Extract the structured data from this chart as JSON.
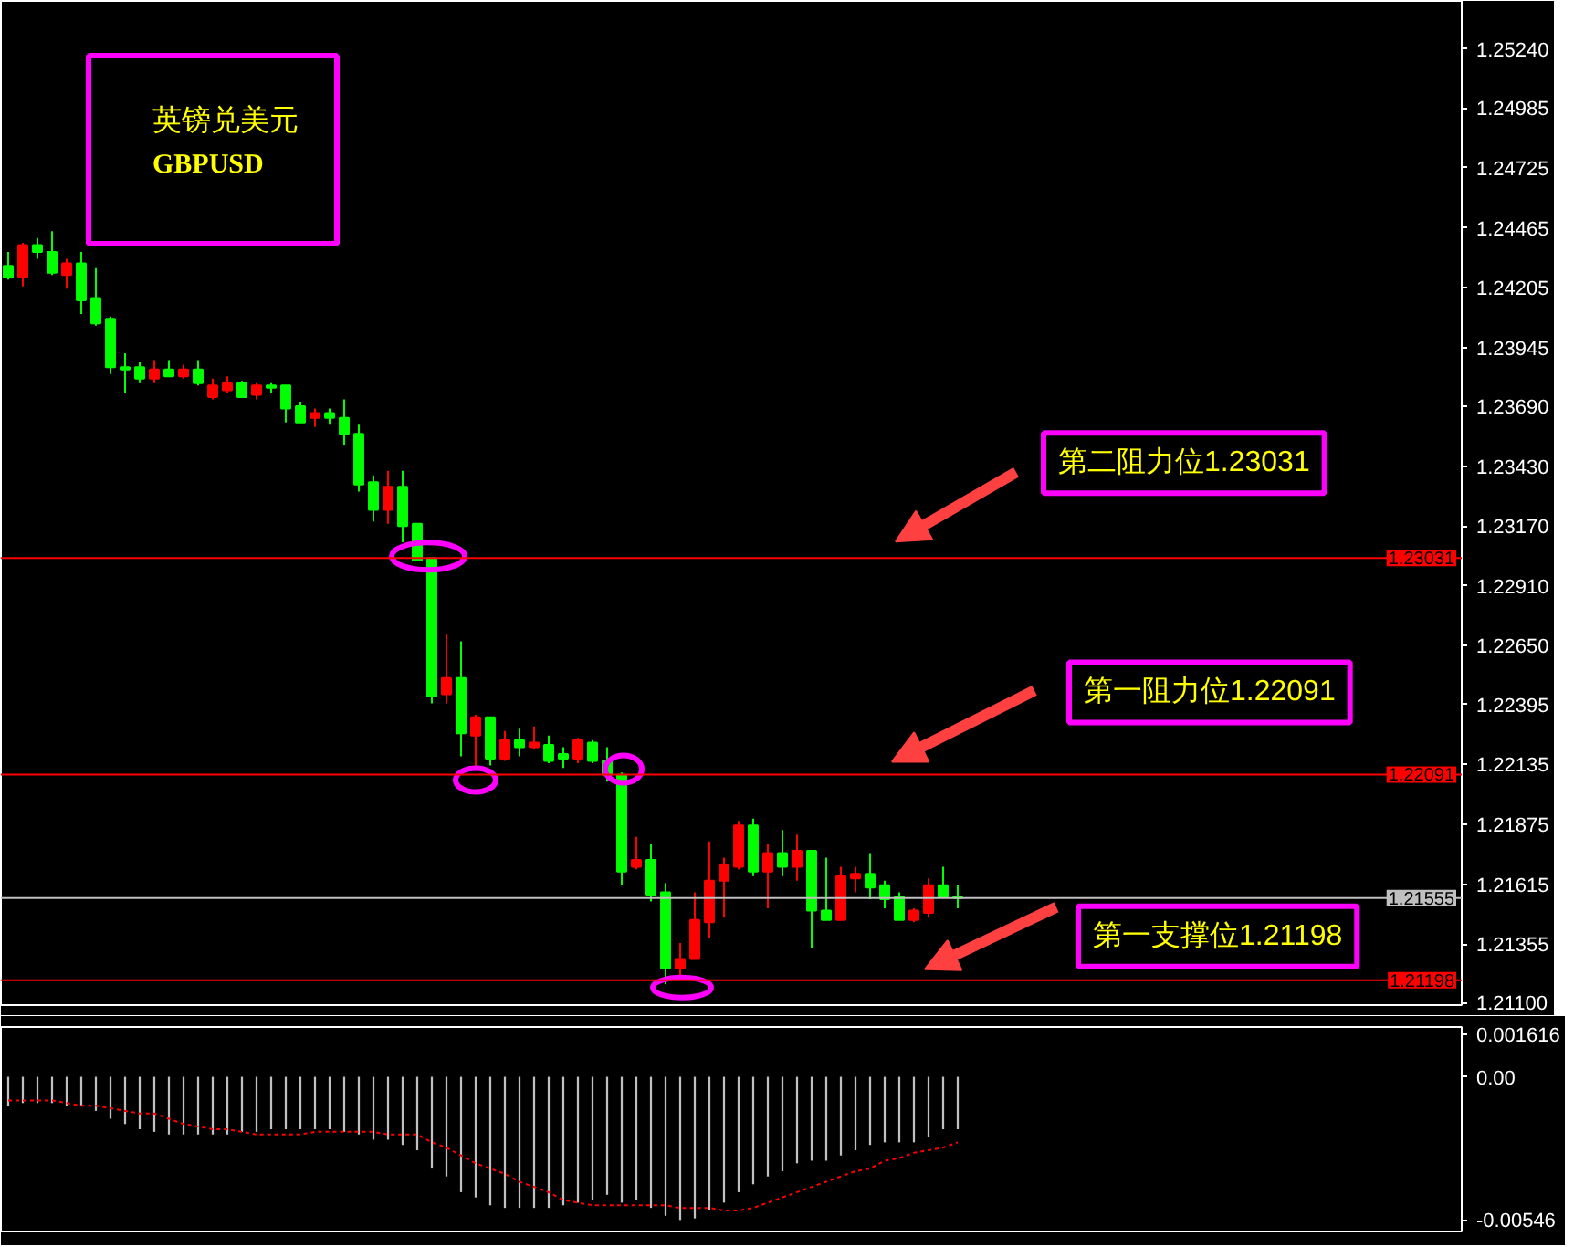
{
  "chart_data": [
    {
      "type": "candlestick",
      "title": "英镑兑美元",
      "subtitle": "GBPUSD",
      "categories": [
        null,
        null,
        null,
        null,
        null,
        null,
        null,
        null,
        null,
        null,
        null,
        null,
        null,
        null,
        null,
        null,
        null,
        null,
        null,
        null,
        null,
        null,
        null,
        null,
        null,
        null,
        null,
        null,
        null,
        null,
        null,
        null,
        null,
        null,
        null,
        null,
        null,
        null,
        null,
        null,
        null,
        null,
        null,
        null,
        null,
        null,
        null,
        null,
        null,
        null,
        null,
        null,
        null,
        null,
        null,
        null,
        null,
        null,
        null,
        null,
        null,
        null,
        null,
        null,
        null,
        null,
        null,
        null,
        null,
        null,
        null,
        null,
        null,
        null,
        null,
        null,
        null,
        null,
        null,
        null,
        null,
        null,
        null,
        null,
        null,
        null,
        null,
        null,
        null,
        null,
        null,
        null,
        null,
        null,
        null,
        null,
        null,
        null,
        null,
        null
      ],
      "ohlc": [
        [
          1.243,
          1.2436,
          1.2424,
          1.2425
        ],
        [
          1.2425,
          1.244,
          1.2421,
          1.2439
        ],
        [
          1.2439,
          1.2442,
          1.2433,
          1.2436
        ],
        [
          1.2436,
          1.2445,
          1.2426,
          1.2427
        ],
        [
          1.2426,
          1.2433,
          1.242,
          1.2431
        ],
        [
          1.2431,
          1.2436,
          1.2409,
          1.2415
        ],
        [
          1.2416,
          1.2429,
          1.2404,
          1.2405
        ],
        [
          1.2407,
          1.2408,
          1.2383,
          1.2386
        ],
        [
          1.2386,
          1.2392,
          1.2375,
          1.2385
        ],
        [
          1.2386,
          1.2388,
          1.2379,
          1.2381
        ],
        [
          1.2381,
          1.2389,
          1.2379,
          1.2385
        ],
        [
          1.2385,
          1.2389,
          1.2382,
          1.2382
        ],
        [
          1.2382,
          1.2387,
          1.2381,
          1.2385
        ],
        [
          1.2385,
          1.2389,
          1.2378,
          1.2379
        ],
        [
          1.2373,
          1.2381,
          1.2372,
          1.2378
        ],
        [
          1.2376,
          1.2382,
          1.2375,
          1.2379
        ],
        [
          1.2379,
          1.238,
          1.2373,
          1.2373
        ],
        [
          1.2374,
          1.2379,
          1.2372,
          1.2378
        ],
        [
          1.2378,
          1.2379,
          1.2375,
          1.2377
        ],
        [
          1.2378,
          1.2378,
          1.2362,
          1.2368
        ],
        [
          1.2369,
          1.2371,
          1.2362,
          1.2362
        ],
        [
          1.2364,
          1.2368,
          1.236,
          1.2366
        ],
        [
          1.2366,
          1.2368,
          1.2361,
          1.2364
        ],
        [
          1.2364,
          1.2372,
          1.2352,
          1.2357
        ],
        [
          1.2357,
          1.2361,
          1.2332,
          1.2335
        ],
        [
          1.2336,
          1.2339,
          1.2319,
          1.2324
        ],
        [
          1.2324,
          1.2341,
          1.2318,
          1.2334
        ],
        [
          1.2334,
          1.2341,
          1.231,
          1.2317
        ],
        [
          1.2318,
          1.2318,
          1.2302,
          1.2302
        ],
        [
          1.2303,
          1.2303,
          1.224,
          1.2243
        ],
        [
          1.2244,
          1.227,
          1.224,
          1.2251
        ],
        [
          1.2251,
          1.2267,
          1.2217,
          1.2227
        ],
        [
          1.2226,
          1.2235,
          1.2211,
          1.2234
        ],
        [
          1.2234,
          1.2234,
          1.2213,
          1.2216
        ],
        [
          1.2216,
          1.2228,
          1.2215,
          1.2224
        ],
        [
          1.2224,
          1.2229,
          1.2217,
          1.2221
        ],
        [
          1.2221,
          1.223,
          1.222,
          1.2223
        ],
        [
          1.2222,
          1.2226,
          1.2214,
          1.2215
        ],
        [
          1.2218,
          1.2221,
          1.2212,
          1.2216
        ],
        [
          1.2216,
          1.2225,
          1.2214,
          1.2224
        ],
        [
          1.2223,
          1.2224,
          1.2214,
          1.2215
        ],
        [
          1.2215,
          1.2221,
          1.2206,
          1.2209
        ],
        [
          1.2209,
          1.221,
          1.2161,
          1.2167
        ],
        [
          1.2169,
          1.2182,
          1.2168,
          1.2172
        ],
        [
          1.2172,
          1.2179,
          1.2154,
          1.2157
        ],
        [
          1.2158,
          1.2162,
          1.2118,
          1.2125
        ],
        [
          1.2125,
          1.2136,
          1.2121,
          1.2129
        ],
        [
          1.2129,
          1.2158,
          1.2129,
          1.2146
        ],
        [
          1.2145,
          1.218,
          1.2138,
          1.2163
        ],
        [
          1.2163,
          1.2173,
          1.2147,
          1.217
        ],
        [
          1.2169,
          1.2189,
          1.2168,
          1.2187
        ],
        [
          1.2187,
          1.219,
          1.2165,
          1.2167
        ],
        [
          1.2167,
          1.2179,
          1.2151,
          1.2175
        ],
        [
          1.2175,
          1.2185,
          1.2165,
          1.2169
        ],
        [
          1.2169,
          1.2183,
          1.2163,
          1.2176
        ],
        [
          1.2176,
          1.2176,
          1.2134,
          1.215
        ],
        [
          1.215,
          1.2173,
          1.2146,
          1.2146
        ],
        [
          1.2146,
          1.2169,
          1.2146,
          1.2165
        ],
        [
          1.2164,
          1.2169,
          1.2158,
          1.2166
        ],
        [
          1.2166,
          1.2175,
          1.2155,
          1.216
        ],
        [
          1.2161,
          1.2163,
          1.2151,
          1.2155
        ],
        [
          1.2156,
          1.2158,
          1.2146,
          1.2146
        ],
        [
          1.2146,
          1.2151,
          1.2145,
          1.215
        ],
        [
          1.2149,
          1.2164,
          1.2147,
          1.2161
        ],
        [
          1.2161,
          1.2169,
          1.2156,
          1.2156
        ],
        [
          1.2156,
          1.2161,
          1.2151,
          1.21555
        ],
        null,
        null,
        null,
        null,
        null,
        null,
        null,
        null,
        null,
        null,
        null,
        null,
        null,
        null,
        null,
        null,
        null,
        null,
        null,
        null,
        null,
        null,
        null,
        null,
        null,
        null,
        null,
        null,
        null,
        null,
        null,
        null,
        null,
        null
      ],
      "colors": [
        "#00ff00",
        "#ff0000",
        "#00ff00",
        "#00ff00",
        "#ff0000",
        "#00ff00",
        "#00ff00",
        "#00ff00",
        "#00ff00",
        "#00ff00",
        "#ff0000",
        "#00ff00",
        "#ff0000",
        "#00ff00",
        "#ff0000",
        "#ff0000",
        "#00ff00",
        "#ff0000",
        "#00ff00",
        "#00ff00",
        "#00ff00",
        "#ff0000",
        "#00ff00",
        "#00ff00",
        "#00ff00",
        "#00ff00",
        "#ff0000",
        "#00ff00",
        "#00ff00",
        "#00ff00",
        "#ff0000",
        "#00ff00",
        "#ff0000",
        "#00ff00",
        "#ff0000",
        "#00ff00",
        "#ff0000",
        "#00ff00",
        "#00ff00",
        "#ff0000",
        "#00ff00",
        "#00ff00",
        "#00ff00",
        "#ff0000",
        "#00ff00",
        "#00ff00",
        "#ff0000",
        "#ff0000",
        "#ff0000",
        "#ff0000",
        "#ff0000",
        "#00ff00",
        "#ff0000",
        "#00ff00",
        "#ff0000",
        "#00ff00",
        "#00ff00",
        "#ff0000",
        "#ff0000",
        "#00ff00",
        "#00ff00",
        "#00ff00",
        "#ff0000",
        "#ff0000",
        "#00ff00",
        "#00ff00",
        null,
        null,
        null,
        null,
        null,
        null,
        null,
        null,
        null,
        null,
        null,
        null,
        null,
        null,
        null,
        null,
        null,
        null,
        null,
        null,
        null,
        null,
        null,
        null,
        null,
        null,
        null,
        null,
        null,
        null,
        null,
        null,
        null,
        null
      ],
      "ylim": [
        1.2109,
        1.2545
      ],
      "yticks": [
        {
          "value": 1.2524,
          "label": "1.25240"
        },
        1.24985,
        1.24725,
        1.24465,
        1.24205,
        1.23945,
        {
          "value": 1.2369,
          "label": "1.23690"
        },
        {
          "value": 1.2343,
          "label": "1.23430"
        },
        {
          "value": 1.2317,
          "label": "1.23170"
        },
        {
          "value": 1.2291,
          "label": "1.22910"
        },
        {
          "value": 1.2265,
          "label": "1.22650"
        },
        1.22395,
        1.22135,
        1.21875,
        1.21615,
        1.21355,
        {
          "value": 1.211,
          "label": "1.21100"
        }
      ],
      "tick_labels": "y",
      "ref_lines": [
        {
          "axis": "y",
          "value": 1.23031,
          "label": "1.23031",
          "color": "#ff0000"
        },
        {
          "axis": "y",
          "value": 1.22091,
          "label": "1.22091",
          "color": "#ff0000"
        },
        {
          "axis": "y",
          "value": 1.21555,
          "label": "1.21555",
          "color": "#c0c0c0"
        },
        {
          "axis": "y",
          "value": 1.21198,
          "label": "1.21198",
          "color": "#ff0000"
        }
      ],
      "annotations": [
        {
          "text": "第二阻力位1.23031",
          "y": 1.23031
        },
        {
          "text": "第一阻力位1.22091",
          "y": 1.22091
        },
        {
          "text": "第一支撑位1.21198",
          "y": 1.21198
        }
      ]
    },
    {
      "type": "bar",
      "categories": [
        null,
        null,
        null,
        null,
        null,
        null,
        null,
        null,
        null,
        null,
        null,
        null,
        null,
        null,
        null,
        null,
        null,
        null,
        null,
        null,
        null,
        null,
        null,
        null,
        null,
        null,
        null,
        null,
        null,
        null,
        null,
        null,
        null,
        null,
        null,
        null,
        null,
        null,
        null,
        null,
        null,
        null,
        null,
        null,
        null,
        null,
        null,
        null,
        null,
        null,
        null,
        null,
        null,
        null,
        null,
        null,
        null,
        null,
        null,
        null,
        null,
        null,
        null,
        null,
        null,
        null,
        null,
        null,
        null,
        null,
        null,
        null,
        null,
        null,
        null,
        null,
        null,
        null,
        null,
        null,
        null,
        null,
        null,
        null,
        null,
        null,
        null,
        null,
        null,
        null,
        null,
        null,
        null,
        null,
        null,
        null,
        null,
        null,
        null,
        null
      ],
      "series": [
        {
          "type": "bar",
          "color": "#c0c0c0",
          "values": [
            -0.0011,
            -0.001,
            -0.001,
            -0.001,
            -0.0011,
            -0.0011,
            -0.0013,
            -0.0016,
            -0.0018,
            -0.002,
            -0.0021,
            -0.0022,
            -0.0022,
            -0.0022,
            -0.0022,
            -0.0022,
            -0.0021,
            -0.0021,
            -0.002,
            -0.002,
            -0.002,
            -0.002,
            -0.002,
            -0.0021,
            -0.0022,
            -0.0024,
            -0.0024,
            -0.0026,
            -0.0028,
            -0.0035,
            -0.0038,
            -0.0044,
            -0.0046,
            -0.0049,
            -0.005,
            -0.005,
            -0.005,
            -0.005,
            -0.0049,
            -0.0048,
            -0.0047,
            -0.0045,
            -0.0048,
            -0.0047,
            -0.005,
            -0.0053,
            -0.00546,
            -0.0054,
            -0.0051,
            -0.0048,
            -0.0044,
            -0.0041,
            -0.0038,
            -0.0036,
            -0.0033,
            -0.0032,
            -0.0032,
            -0.003,
            -0.0028,
            -0.0026,
            -0.0025,
            -0.0025,
            -0.0025,
            -0.0023,
            -0.002,
            -0.002,
            null,
            null,
            null,
            null,
            null,
            null,
            null,
            null,
            null,
            null,
            null,
            null,
            null,
            null,
            null,
            null,
            null,
            null,
            null,
            null,
            null,
            null,
            null,
            null,
            null,
            null,
            null,
            null,
            null,
            null,
            null,
            null,
            null,
            null
          ]
        },
        {
          "type": "line",
          "color": "#ff0000",
          "line_style": "dotted",
          "values": [
            -0.0009,
            -0.0009,
            -0.0009,
            -0.0009,
            -0.001,
            -0.0011,
            -0.0011,
            -0.0012,
            -0.0013,
            -0.0014,
            -0.0014,
            -0.0016,
            -0.0018,
            -0.0019,
            -0.002,
            -0.002,
            -0.0021,
            -0.0022,
            -0.0022,
            -0.0022,
            -0.0022,
            -0.0021,
            -0.0021,
            -0.0021,
            -0.0021,
            -0.0021,
            -0.0022,
            -0.0022,
            -0.0022,
            -0.0025,
            -0.0027,
            -0.003,
            -0.0033,
            -0.0035,
            -0.0037,
            -0.004,
            -0.0042,
            -0.0044,
            -0.0047,
            -0.0048,
            -0.0049,
            -0.0049,
            -0.0049,
            -0.0049,
            -0.0049,
            -0.0049,
            -0.005,
            -0.005,
            -0.005,
            -0.0051,
            -0.0051,
            -0.005,
            -0.0048,
            -0.0046,
            -0.0044,
            -0.0042,
            -0.004,
            -0.0038,
            -0.0036,
            -0.0035,
            -0.0032,
            -0.0031,
            -0.0029,
            -0.0028,
            -0.0027,
            -0.0025,
            null,
            null,
            null,
            null,
            null,
            null,
            null,
            null,
            null,
            null,
            null,
            null,
            null,
            null,
            null,
            null,
            null,
            null,
            null,
            null,
            null,
            null,
            null,
            null,
            null,
            null,
            null,
            null,
            null,
            null,
            null,
            null,
            null,
            null
          ]
        }
      ],
      "ylim": [
        -0.0059,
        0.0019
      ],
      "yticks": [
        0.001616,
        {
          "value": 0,
          "label": "0.00"
        },
        -0.00546
      ],
      "tick_labels": "y"
    }
  ]
}
